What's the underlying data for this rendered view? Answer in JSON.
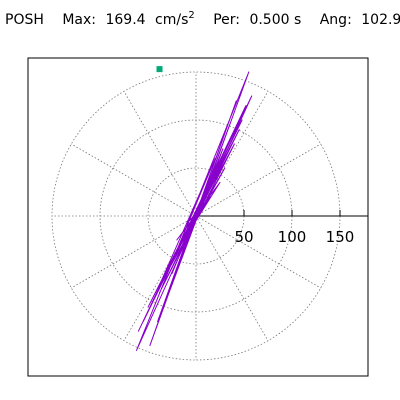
{
  "header": {
    "station": "POSH",
    "max_label": "Max:",
    "max_value": "169.4",
    "max_unit_base": "cm/s",
    "max_unit_exp": "2",
    "per_label": "Per:",
    "per_value": "0.500 s",
    "ang_label": "Ang:",
    "ang_value": "102.9"
  },
  "chart_data": {
    "type": "line",
    "title": "",
    "coordinate": "polar-grid particle-motion hodogram",
    "radial_ticks": [
      50,
      100,
      150
    ],
    "tick_labels": [
      "50",
      "100",
      "150"
    ],
    "ring_radii": [
      50,
      100,
      150
    ],
    "spoke_angles_deg": [
      0,
      30,
      60,
      90,
      120,
      150,
      180,
      210,
      240,
      270,
      300,
      330
    ],
    "series": [
      {
        "color": "#8800cc",
        "x": [
          0,
          3,
          -6,
          8,
          -10,
          12,
          -8,
          15,
          -20,
          25,
          -22,
          30,
          -28,
          20,
          -35,
          40,
          -38,
          45,
          -50,
          48,
          -55,
          52,
          -60,
          58,
          -62,
          55,
          -48,
          42,
          -40,
          35,
          -30,
          28,
          -25,
          20,
          -18,
          14,
          -12,
          8,
          -6,
          4
        ],
        "y": [
          0,
          5,
          -4,
          10,
          -8,
          15,
          -18,
          20,
          -25,
          35,
          -40,
          50,
          -55,
          60,
          -65,
          75,
          -80,
          90,
          -95,
          100,
          -110,
          115,
          -120,
          125,
          -140,
          150,
          -135,
          120,
          -110,
          95,
          -85,
          70,
          -60,
          50,
          -40,
          30,
          -20,
          12,
          -8,
          3
        ]
      }
    ],
    "marker": {
      "shape": "square",
      "color": "#00aa77",
      "x": -38,
      "y": 153
    },
    "grid": true
  }
}
